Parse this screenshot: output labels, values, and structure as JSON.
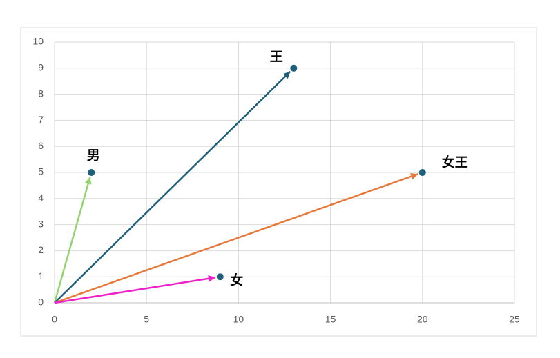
{
  "chart_data": {
    "type": "scatter",
    "x": [
      2,
      13,
      20,
      9
    ],
    "values": [
      5,
      9,
      5,
      1
    ],
    "labels": [
      "男",
      "王",
      "女王",
      "女"
    ],
    "point_color": "#1f5f7a",
    "arrow_colors": [
      "#92d36e",
      "#1f5f7a",
      "#e8783a",
      "#f020c8"
    ],
    "xlim": [
      0,
      25
    ],
    "xticks": [
      0,
      5,
      10,
      15,
      20,
      25
    ],
    "ylim": [
      0,
      10
    ],
    "yticks": [
      0,
      1,
      2,
      3,
      4,
      5,
      6,
      7,
      8,
      9,
      10
    ],
    "grid": true
  }
}
